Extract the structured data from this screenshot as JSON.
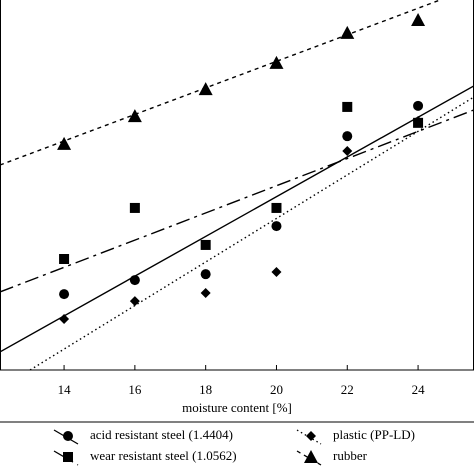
{
  "chart_data": {
    "type": "scatter",
    "xlabel": "moisture content [%]",
    "x": [
      14,
      16,
      18,
      20,
      22,
      24
    ],
    "xlim": [
      12.19,
      25.58
    ],
    "xticks": [
      14,
      16,
      18,
      20,
      22,
      24
    ],
    "ylim": [
      0,
      100
    ],
    "series": [
      {
        "name": "acid resistant steel (1.4404)",
        "color": "#000000",
        "marker": "circle",
        "dash": "none",
        "values": [
          20.5,
          24.3,
          25.9,
          38.9,
          63.2,
          71.4
        ],
        "fit": {
          "x": [
            12.19,
            25.58
          ],
          "values": [
            4.9,
            76.8
          ]
        }
      },
      {
        "name": "wear resistant steel (1.0562)",
        "color": "#000000",
        "marker": "square",
        "dash": "14 5 3 5",
        "values": [
          30,
          43.8,
          33.8,
          43.8,
          71.1,
          66.8
        ],
        "fit": {
          "x": [
            12.19,
            25.58
          ],
          "values": [
            21.1,
            70.3
          ]
        }
      },
      {
        "name": "plastic (PP-LD)",
        "color": "#000000",
        "marker": "diamond",
        "dash": "1.5 3",
        "values": [
          13.8,
          18.6,
          20.8,
          26.5,
          59.2,
          67.3
        ],
        "fit": {
          "x": [
            13.04,
            25.58
          ],
          "values": [
            0,
            73.8
          ]
        }
      },
      {
        "name": "rubber",
        "color": "#000000",
        "marker": "triangle",
        "dash": "4 4",
        "values": [
          61.1,
          68.6,
          75.9,
          83,
          91.1,
          94.6
        ],
        "fit": {
          "x": [
            12.19,
            24.62
          ],
          "values": [
            55.4,
            100
          ]
        }
      }
    ]
  }
}
